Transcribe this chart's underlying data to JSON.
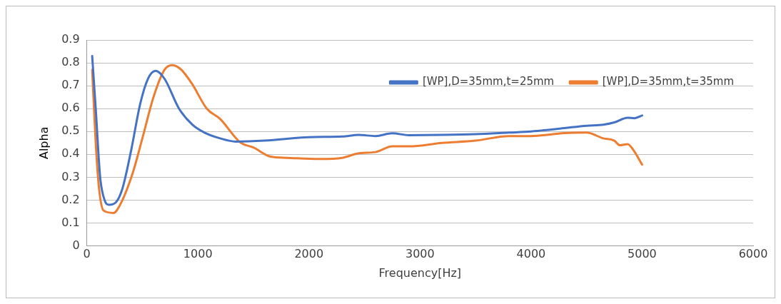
{
  "chart_data": {
    "type": "line",
    "xlabel": "Frequency[Hz]",
    "ylabel": "Alpha",
    "xlim": [
      0,
      6000
    ],
    "xticks": [
      0,
      1000,
      2000,
      3000,
      4000,
      5000,
      6000
    ],
    "ylim": [
      0,
      0.9
    ],
    "yticks": [
      0,
      0.1,
      0.2,
      0.3,
      0.4,
      0.5,
      0.6,
      0.7,
      0.8,
      0.9
    ],
    "grid": "y",
    "legend": "top right",
    "marker": "none",
    "line_style": "solid",
    "series": [
      {
        "name": "[WP],D=35mm,t=25mm",
        "color": "#4472c4",
        "x": [
          48,
          80,
          120,
          160,
          200,
          260,
          320,
          400,
          480,
          550,
          620,
          700,
          830,
          950,
          1060,
          1200,
          1340,
          1600,
          2000,
          2300,
          2450,
          2600,
          2750,
          2900,
          3200,
          3500,
          3800,
          4000,
          4300,
          4500,
          4650,
          4750,
          4870,
          4930,
          5000
        ],
        "values": [
          0.83,
          0.6,
          0.3,
          0.2,
          0.18,
          0.19,
          0.25,
          0.42,
          0.62,
          0.73,
          0.765,
          0.73,
          0.6,
          0.53,
          0.495,
          0.47,
          0.456,
          0.46,
          0.475,
          0.478,
          0.485,
          0.48,
          0.492,
          0.484,
          0.485,
          0.488,
          0.495,
          0.5,
          0.515,
          0.525,
          0.53,
          0.54,
          0.56,
          0.558,
          0.57
        ]
      },
      {
        "name": "[WP],D=35mm,t=35mm",
        "color": "#ed7d31",
        "x": [
          48,
          80,
          110,
          150,
          240,
          300,
          414,
          500,
          600,
          700,
          770,
          850,
          945,
          1080,
          1200,
          1380,
          1500,
          1655,
          1800,
          2100,
          2300,
          2450,
          2600,
          2750,
          2900,
          3200,
          3500,
          3800,
          4000,
          4300,
          4500,
          4650,
          4750,
          4800,
          4870,
          4920,
          5000
        ],
        "values": [
          0.77,
          0.45,
          0.25,
          0.155,
          0.144,
          0.18,
          0.32,
          0.47,
          0.65,
          0.77,
          0.79,
          0.77,
          0.71,
          0.6,
          0.555,
          0.453,
          0.43,
          0.39,
          0.385,
          0.38,
          0.385,
          0.405,
          0.41,
          0.435,
          0.435,
          0.45,
          0.46,
          0.48,
          0.48,
          0.493,
          0.495,
          0.47,
          0.46,
          0.44,
          0.445,
          0.42,
          0.355
        ]
      }
    ]
  }
}
